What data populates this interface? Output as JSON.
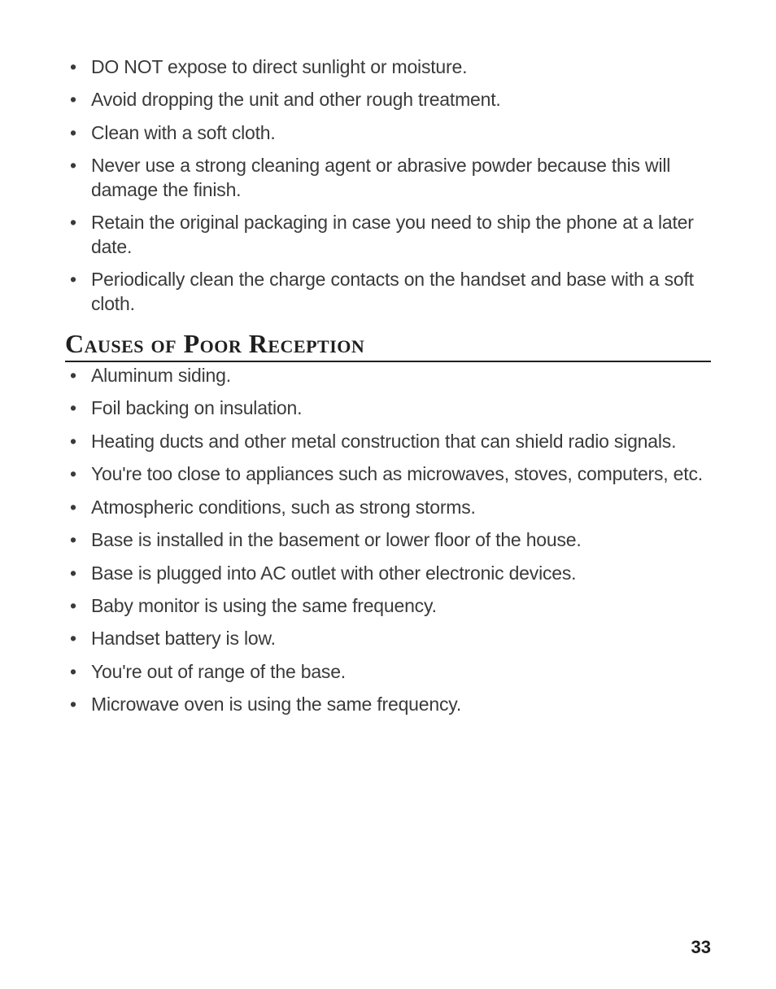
{
  "topList": {
    "items": [
      "DO NOT expose to direct sunlight or moisture.",
      "Avoid dropping the unit and other rough treatment.",
      "Clean with a soft cloth.",
      "Never use a strong cleaning agent or abrasive powder because this will damage the finish.",
      "Retain the original packaging in case you need to ship the phone at a later date.",
      "Periodically clean the charge contacts on the handset and base with a soft cloth."
    ]
  },
  "sectionHeading": "Causes of Poor Reception",
  "bottomList": {
    "items": [
      "Aluminum siding.",
      "Foil backing on insulation.",
      "Heating ducts and other metal construction that can shield radio signals.",
      "You're too close to appliances such as microwaves, stoves, computers, etc.",
      "Atmospheric conditions, such as strong storms.",
      "Base is installed in the basement or lower floor of the house.",
      "Base is plugged into AC outlet with other electronic devices.",
      "Baby monitor is using the same frequency.",
      "Handset battery is low.",
      "You're out of range of the base.",
      "Microwave oven is using the same frequency."
    ]
  },
  "pageNumber": "33"
}
